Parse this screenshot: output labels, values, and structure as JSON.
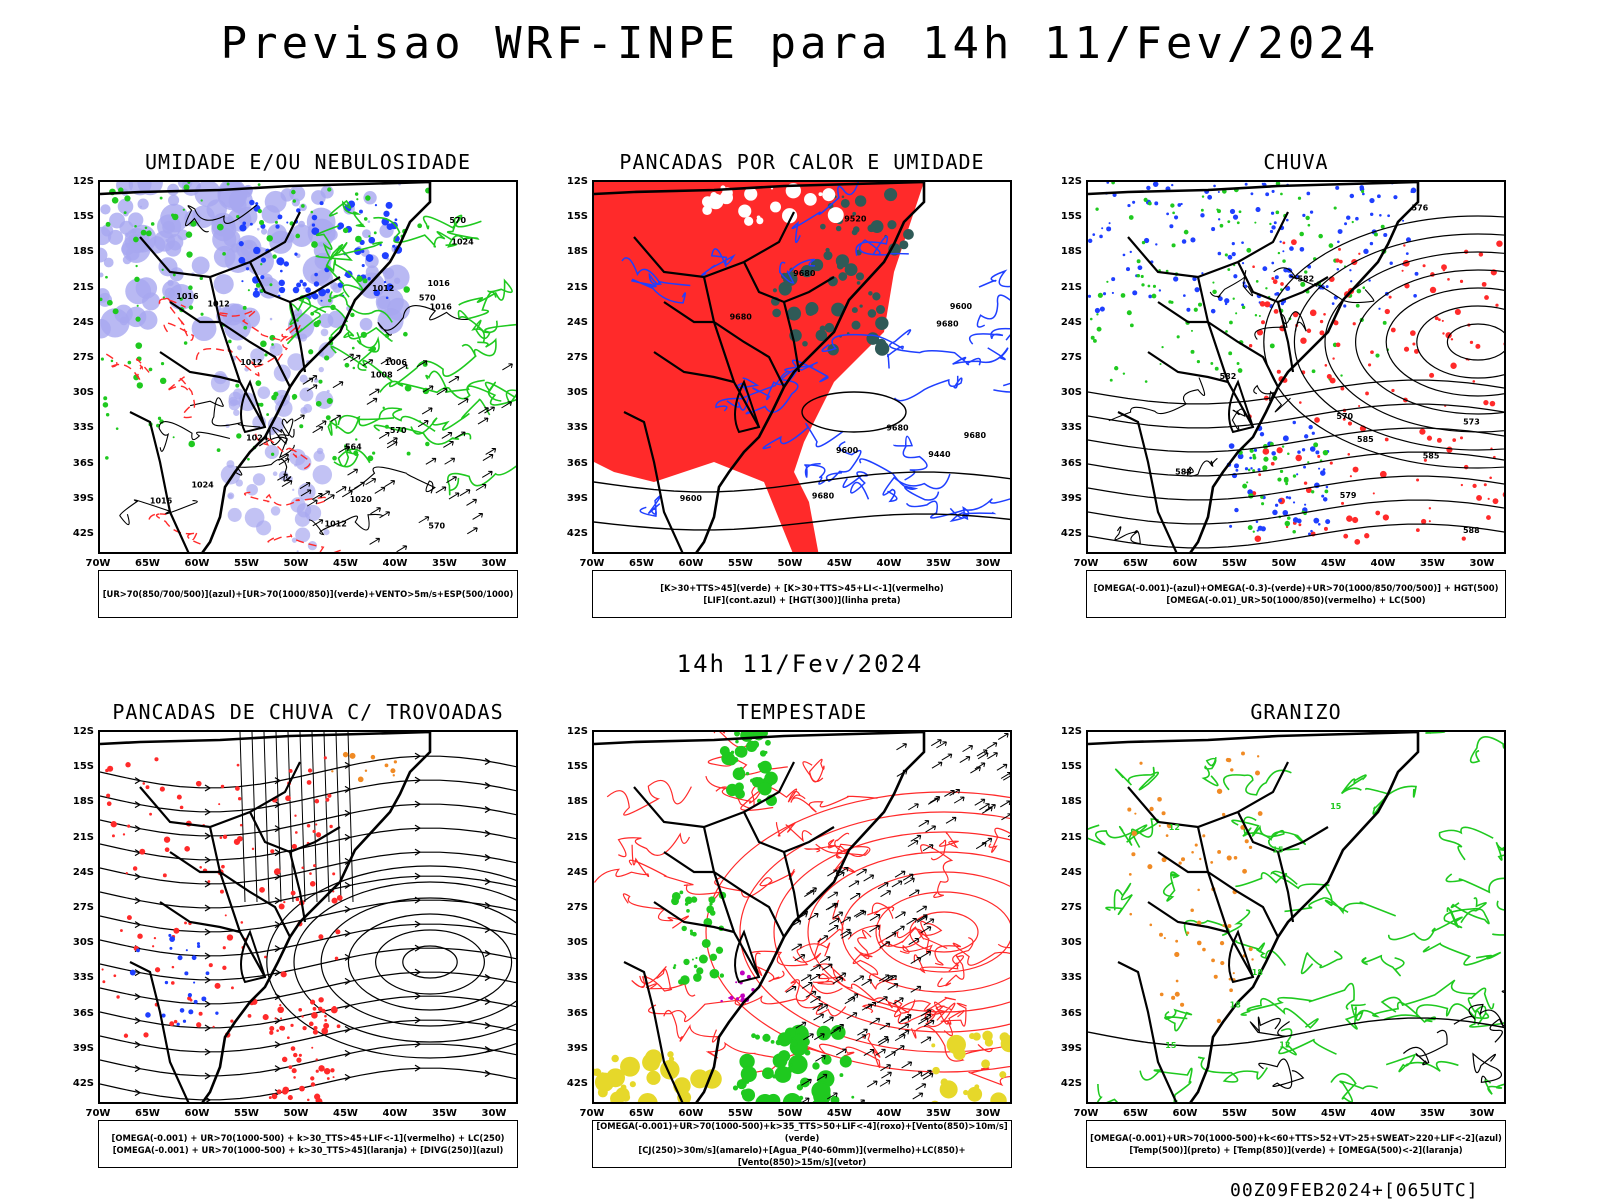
{
  "header": {
    "title": "Previsao WRF-INPE  para 14h 11/Fev/2024"
  },
  "middle": {
    "subtitle": "14h 11/Fev/2024"
  },
  "footer": {
    "run": "00Z09FEB2024+[065UTC]"
  },
  "axes": {
    "lat_labels": [
      "12S",
      "15S",
      "18S",
      "21S",
      "24S",
      "27S",
      "30S",
      "33S",
      "36S",
      "39S",
      "42S"
    ],
    "lon_labels": [
      "70W",
      "65W",
      "60W",
      "55W",
      "50W",
      "45W",
      "40W",
      "35W",
      "30W"
    ]
  },
  "colors": {
    "blue": "#1f3fff",
    "green": "#1fc91f",
    "red": "#ff2a2a",
    "lavender": "#a8a8f0",
    "teal": "#2f5a57",
    "yellow": "#e6d82a",
    "orange": "#f08a24",
    "purple": "#c000c0"
  },
  "panels": [
    {
      "id": "umidade",
      "title": "UMIDADE E/OU NEBULOSIDADE",
      "legend": [
        "[UR>70(850/700/500)](azul)+[UR>70(1000/850)](verde)+VENTO>5m/s+ESP(500/1000)"
      ],
      "labels": [
        "1012",
        "1016",
        "1016",
        "1016",
        "1012",
        "1008",
        "1006",
        "1012",
        "1016",
        "1020",
        "1024",
        "1024",
        "1024",
        "1012",
        "570",
        "570",
        "570",
        "570",
        "564"
      ]
    },
    {
      "id": "pancadas_calor",
      "title": "PANCADAS POR CALOR E UMIDADE",
      "legend": [
        "[K>30+TTS>45](verde) + [K>30+TTS>45+LI<-1](vermelho)",
        "[LIF](cont.azul) + [HGT(300)](linha preta)"
      ],
      "labels": [
        "9680",
        "9680",
        "9600",
        "9680",
        "9680",
        "9680",
        "9600",
        "9520",
        "9440",
        "9600",
        "9680"
      ]
    },
    {
      "id": "chuva",
      "title": "CHUVA",
      "legend": [
        "[OMEGA(-0.001)-(azul)+OMEGA(-0.3)-(verde)+UR>70(1000/850/700/500)] + HGT(500)",
        "[OMEGA(-0.01)_UR>50(1000/850)(vermelho) + LC(500)"
      ],
      "labels": [
        "582",
        "588",
        "585",
        "588",
        "582",
        "576",
        "573",
        "570",
        "585",
        "579"
      ]
    },
    {
      "id": "trovoadas",
      "title": "PANCADAS DE CHUVA C/ TROVOADAS",
      "legend": [
        "[OMEGA(-0.001) + UR>70(1000-500) + k>30_TTS>45+LIF<-1](vermelho) + LC(250)",
        "[OMEGA(-0.001) + UR>70(1000-500) + k>30_TTS>45](laranja) + [DIVG(250)](azul)"
      ],
      "labels": []
    },
    {
      "id": "tempestade",
      "title": "TEMPESTADE",
      "legend": [
        "[OMEGA(-0.001)+UR>70(1000-500)+k>35_TTS>50+LIF<-4](roxo)+[Vento(850)>10m/s](verde)",
        "[CJ(250)>30m/s](amarelo)+[Agua_P(40-60mm)](vermelho)+LC(850)+[Vento(850)>15m/s](vetor)"
      ],
      "labels": []
    },
    {
      "id": "granizo",
      "title": "GRANIZO",
      "legend": [
        "[OMEGA(-0.001)+UR>70(1000-500)+k<60+TTS>52+VT>25+SWEAT>220+LIF<-2](azul)",
        "[Temp(500)](preto) + [Temp(850)](verde) + [OMEGA(500)<-2](laranja)"
      ],
      "labels": [
        "18",
        "15",
        "12",
        "15",
        "18",
        "12",
        "15"
      ]
    }
  ]
}
